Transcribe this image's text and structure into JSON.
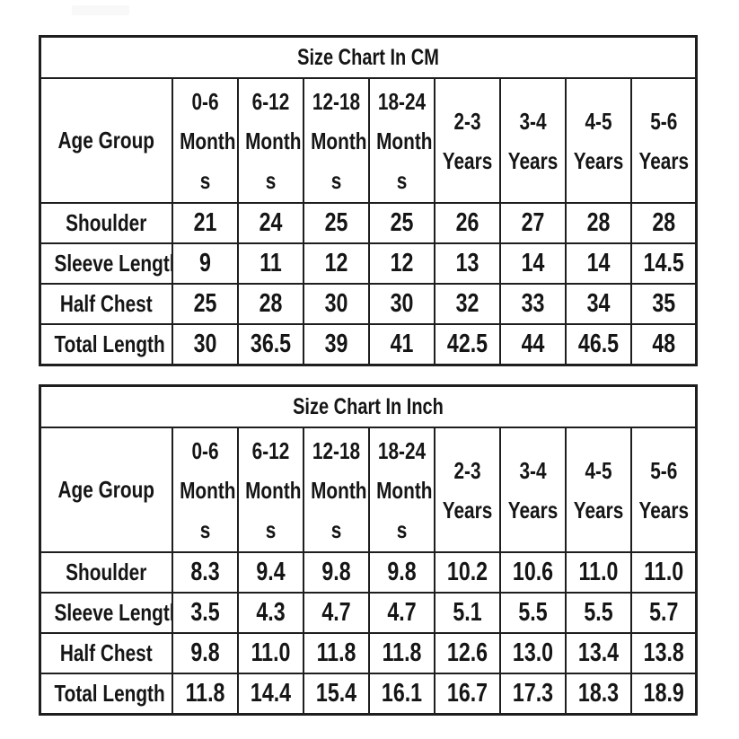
{
  "colors": {
    "background": "#ffffff",
    "table_background": "#ffffff",
    "border": "#1e1e1e",
    "text": "#151515"
  },
  "chart_data": [
    {
      "type": "table",
      "title": "Size Chart In CM",
      "corner_header": "Age Group",
      "column_headers": [
        {
          "label": "0-6 Months",
          "lines": [
            "0-6",
            "Month",
            "s"
          ]
        },
        {
          "label": "6-12 Months",
          "lines": [
            "6-12",
            "Month",
            "s"
          ]
        },
        {
          "label": "12-18 Months",
          "lines": [
            "12-18",
            "Month",
            "s"
          ]
        },
        {
          "label": "18-24 Months",
          "lines": [
            "18-24",
            "Month",
            "s"
          ]
        },
        {
          "label": "2-3 Years",
          "lines": [
            "2-3",
            "Years"
          ]
        },
        {
          "label": "3-4 Years",
          "lines": [
            "3-4",
            "Years"
          ]
        },
        {
          "label": "4-5 Years",
          "lines": [
            "4-5",
            "Years"
          ]
        },
        {
          "label": "5-6 Years",
          "lines": [
            "5-6",
            "Years"
          ]
        }
      ],
      "rows": [
        {
          "label": "Shoulder",
          "values": [
            "21",
            "24",
            "25",
            "25",
            "26",
            "27",
            "28",
            "28"
          ]
        },
        {
          "label": "Sleeve Length",
          "values": [
            "9",
            "11",
            "12",
            "12",
            "13",
            "14",
            "14",
            "14.5"
          ]
        },
        {
          "label": "Half Chest",
          "values": [
            "25",
            "28",
            "30",
            "30",
            "32",
            "33",
            "34",
            "35"
          ]
        },
        {
          "label": "Total Length",
          "values": [
            "30",
            "36.5",
            "39",
            "41",
            "42.5",
            "44",
            "46.5",
            "48"
          ]
        }
      ]
    },
    {
      "type": "table",
      "title": "Size Chart In Inch",
      "corner_header": "Age Group",
      "column_headers": [
        {
          "label": "0-6 Months",
          "lines": [
            "0-6",
            "Month",
            "s"
          ]
        },
        {
          "label": "6-12 Months",
          "lines": [
            "6-12",
            "Month",
            "s"
          ]
        },
        {
          "label": "12-18 Months",
          "lines": [
            "12-18",
            "Month",
            "s"
          ]
        },
        {
          "label": "18-24 Months",
          "lines": [
            "18-24",
            "Month",
            "s"
          ]
        },
        {
          "label": "2-3 Years",
          "lines": [
            "2-3",
            "Years"
          ]
        },
        {
          "label": "3-4 Years",
          "lines": [
            "3-4",
            "Years"
          ]
        },
        {
          "label": "4-5 Years",
          "lines": [
            "4-5",
            "Years"
          ]
        },
        {
          "label": "5-6 Years",
          "lines": [
            "5-6",
            "Years"
          ]
        }
      ],
      "rows": [
        {
          "label": "Shoulder",
          "values": [
            "8.3",
            "9.4",
            "9.8",
            "9.8",
            "10.2",
            "10.6",
            "11.0",
            "11.0"
          ]
        },
        {
          "label": "Sleeve Length",
          "values": [
            "3.5",
            "4.3",
            "4.7",
            "4.7",
            "5.1",
            "5.5",
            "5.5",
            "5.7"
          ]
        },
        {
          "label": "Half Chest",
          "values": [
            "9.8",
            "11.0",
            "11.8",
            "11.8",
            "12.6",
            "13.0",
            "13.4",
            "13.8"
          ]
        },
        {
          "label": "Total Length",
          "values": [
            "11.8",
            "14.4",
            "15.4",
            "16.1",
            "16.7",
            "17.3",
            "18.3",
            "18.9"
          ]
        }
      ]
    }
  ]
}
